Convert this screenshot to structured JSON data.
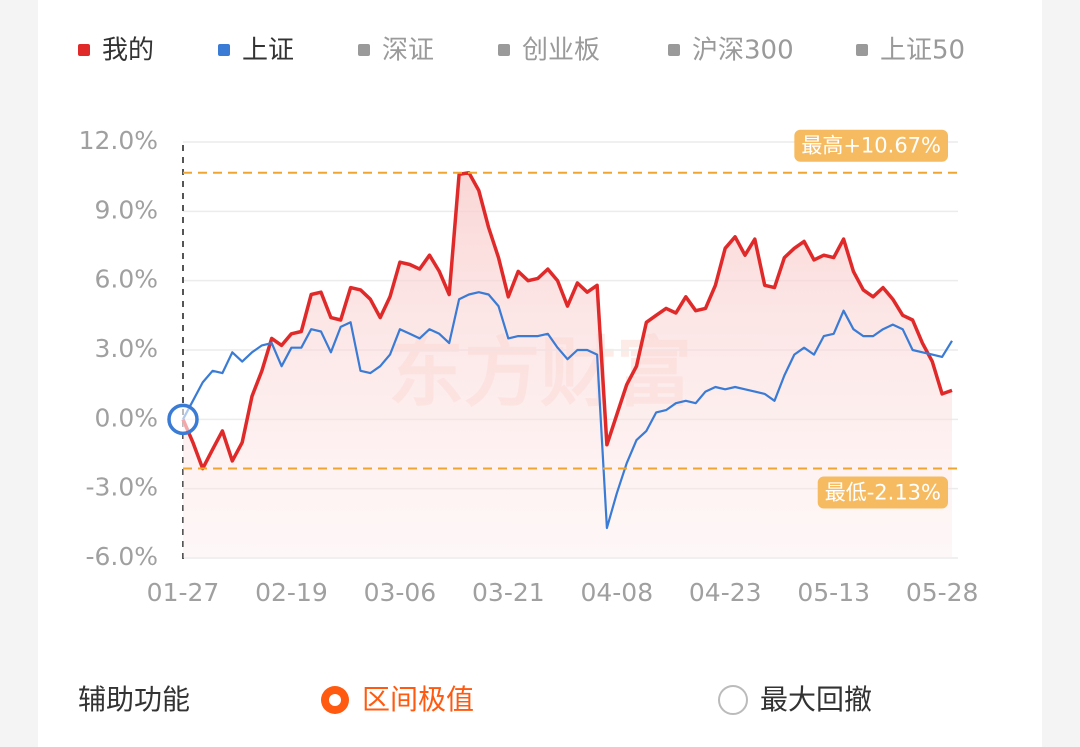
{
  "chart_data": {
    "type": "line",
    "categories": [
      "01-27",
      null,
      null,
      null,
      null,
      null,
      null,
      null,
      null,
      null,
      null,
      "02-19",
      null,
      null,
      null,
      null,
      null,
      null,
      null,
      null,
      null,
      null,
      "03-06",
      null,
      null,
      null,
      null,
      null,
      null,
      null,
      null,
      null,
      null,
      "03-21",
      null,
      null,
      null,
      null,
      null,
      null,
      null,
      null,
      null,
      null,
      "04-08",
      null,
      null,
      null,
      null,
      null,
      null,
      null,
      null,
      null,
      null,
      "04-23",
      null,
      null,
      null,
      null,
      null,
      null,
      null,
      null,
      null,
      null,
      "05-13",
      null,
      null,
      null,
      null,
      null,
      null,
      null,
      null,
      null,
      null,
      "05-28",
      null
    ],
    "series": [
      {
        "name": "我的",
        "color": "#e02a2a",
        "values": [
          0,
          -1.0,
          -2.13,
          -1.3,
          -0.5,
          -1.8,
          -1.0,
          1.0,
          2.1,
          3.5,
          3.2,
          3.7,
          3.8,
          5.4,
          5.5,
          4.4,
          4.3,
          5.7,
          5.6,
          5.2,
          4.4,
          5.3,
          6.8,
          6.7,
          6.5,
          7.1,
          6.4,
          5.4,
          10.6,
          10.67,
          9.9,
          8.3,
          7.0,
          5.3,
          6.4,
          6.0,
          6.1,
          6.5,
          6.0,
          4.9,
          5.9,
          5.5,
          5.8,
          -1.1,
          0.2,
          1.5,
          2.3,
          4.2,
          4.5,
          4.8,
          4.6,
          5.3,
          4.7,
          4.8,
          5.8,
          7.4,
          7.9,
          7.1,
          7.8,
          5.8,
          5.7,
          7.0,
          7.4,
          7.7,
          6.9,
          7.1,
          7.0,
          7.8,
          6.4,
          5.6,
          5.3,
          5.7,
          5.2,
          4.5,
          4.3,
          3.3,
          2.5,
          1.1,
          1.25
        ]
      },
      {
        "name": "上证",
        "color": "#3a7bd5",
        "values": [
          0,
          0.8,
          1.6,
          2.1,
          2.0,
          2.9,
          2.5,
          2.9,
          3.2,
          3.3,
          2.3,
          3.1,
          3.1,
          3.9,
          3.8,
          2.9,
          4.0,
          4.2,
          2.1,
          2.0,
          2.3,
          2.8,
          3.9,
          3.7,
          3.5,
          3.9,
          3.7,
          3.3,
          5.2,
          5.4,
          5.5,
          5.4,
          4.9,
          3.5,
          3.6,
          3.6,
          3.6,
          3.7,
          3.1,
          2.6,
          3.0,
          3.0,
          2.8,
          -4.7,
          -3.2,
          -1.9,
          -0.9,
          -0.5,
          0.3,
          0.4,
          0.7,
          0.8,
          0.7,
          1.2,
          1.4,
          1.3,
          1.4,
          1.3,
          1.2,
          1.1,
          0.8,
          1.9,
          2.8,
          3.1,
          2.8,
          3.6,
          3.7,
          4.7,
          3.9,
          3.6,
          3.6,
          3.9,
          4.1,
          3.9,
          3.0,
          2.9,
          2.8,
          2.7,
          3.4
        ]
      }
    ],
    "inactive_series": [
      {
        "name": "深证",
        "color": "#9a9a9a"
      },
      {
        "name": "创业板",
        "color": "#9a9a9a"
      },
      {
        "name": "沪深300",
        "color": "#9a9a9a"
      },
      {
        "name": "上证50",
        "color": "#9a9a9a"
      }
    ],
    "ylim": [
      -6,
      12
    ],
    "yticks": [
      {
        "value": -6,
        "label": "-6.0%"
      },
      {
        "value": -3,
        "label": "-3.0%"
      },
      {
        "value": 0,
        "label": "0.0%"
      },
      {
        "value": 3,
        "label": "3.0%"
      },
      {
        "value": 6,
        "label": "6.0%"
      },
      {
        "value": 9,
        "label": "9.0%"
      },
      {
        "value": 12,
        "label": "12.0%"
      }
    ],
    "grid": true,
    "annotations": [
      {
        "label": "最高+10.67%",
        "value": 10.67
      },
      {
        "label": "最低-2.13%",
        "value": -2.13
      }
    ],
    "watermark": "东方财富"
  },
  "controls": {
    "title": "辅助功能",
    "options": [
      {
        "label": "区间极值",
        "selected": true
      },
      {
        "label": "最大回撤",
        "selected": false
      }
    ]
  }
}
